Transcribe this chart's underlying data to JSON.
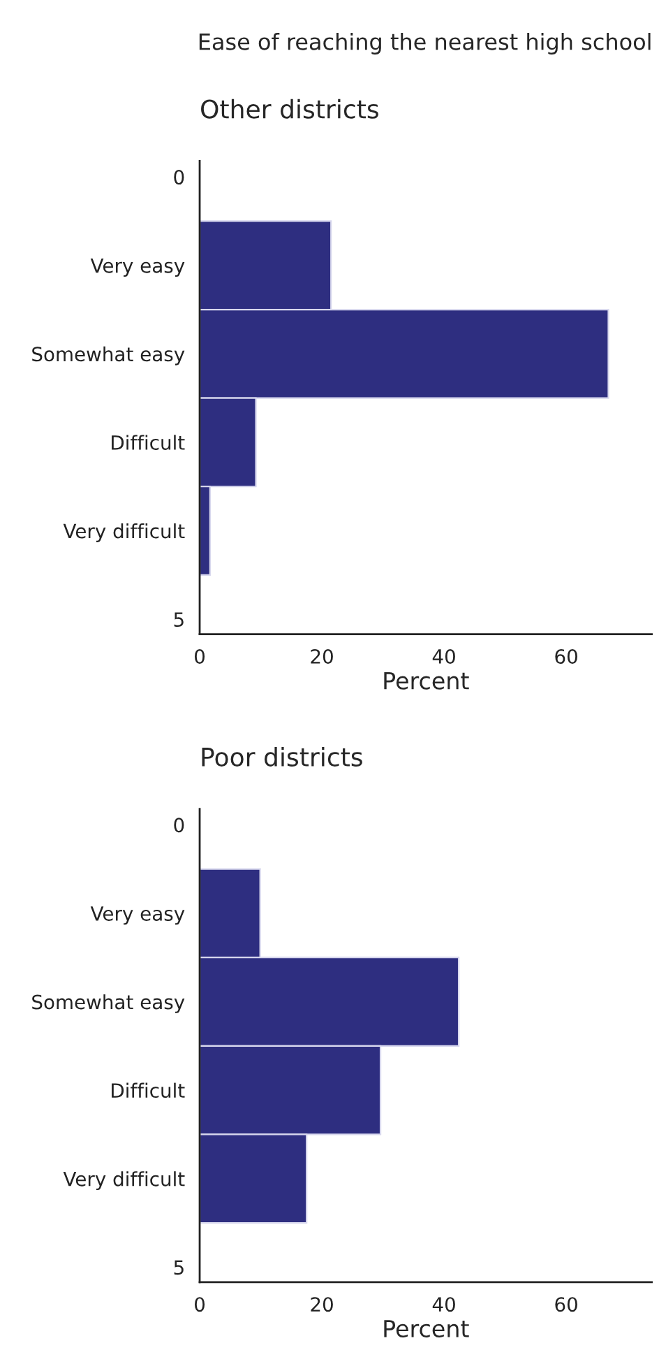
{
  "chart_data": [
    {
      "type": "bar",
      "orientation": "horizontal",
      "title": "Ease of reaching the nearest high school",
      "subtitle": "Other districts",
      "xlabel": "Percent",
      "x": [
        1,
        2,
        3,
        4
      ],
      "values": [
        21.5,
        66.9,
        9.2,
        1.7
      ],
      "color": "#2e2e80",
      "xlim": [
        0,
        74
      ],
      "xticks": [
        0,
        20,
        40,
        60
      ],
      "ylim": [
        5.17,
        -0.18
      ],
      "yticks": [
        0,
        {
          "value": 1,
          "label": "Very easy"
        },
        {
          "value": 2,
          "label": "Somewhat easy"
        },
        {
          "value": 3,
          "label": "Difficult"
        },
        {
          "value": 4,
          "label": "Very difficult"
        },
        5
      ],
      "grid": false
    },
    {
      "type": "bar",
      "orientation": "horizontal",
      "subtitle": "Poor districts",
      "xlabel": "Percent",
      "x": [
        1,
        2,
        3,
        4
      ],
      "values": [
        9.9,
        42.4,
        29.6,
        17.5
      ],
      "color": "#2e2e80",
      "xlim": [
        0,
        74
      ],
      "xticks": [
        0,
        20,
        40,
        60
      ],
      "ylim": [
        5.17,
        -0.18
      ],
      "yticks": [
        0,
        {
          "value": 1,
          "label": "Very easy"
        },
        {
          "value": 2,
          "label": "Somewhat easy"
        },
        {
          "value": 3,
          "label": "Difficult"
        },
        {
          "value": 4,
          "label": "Very difficult"
        },
        5
      ],
      "grid": false
    }
  ]
}
